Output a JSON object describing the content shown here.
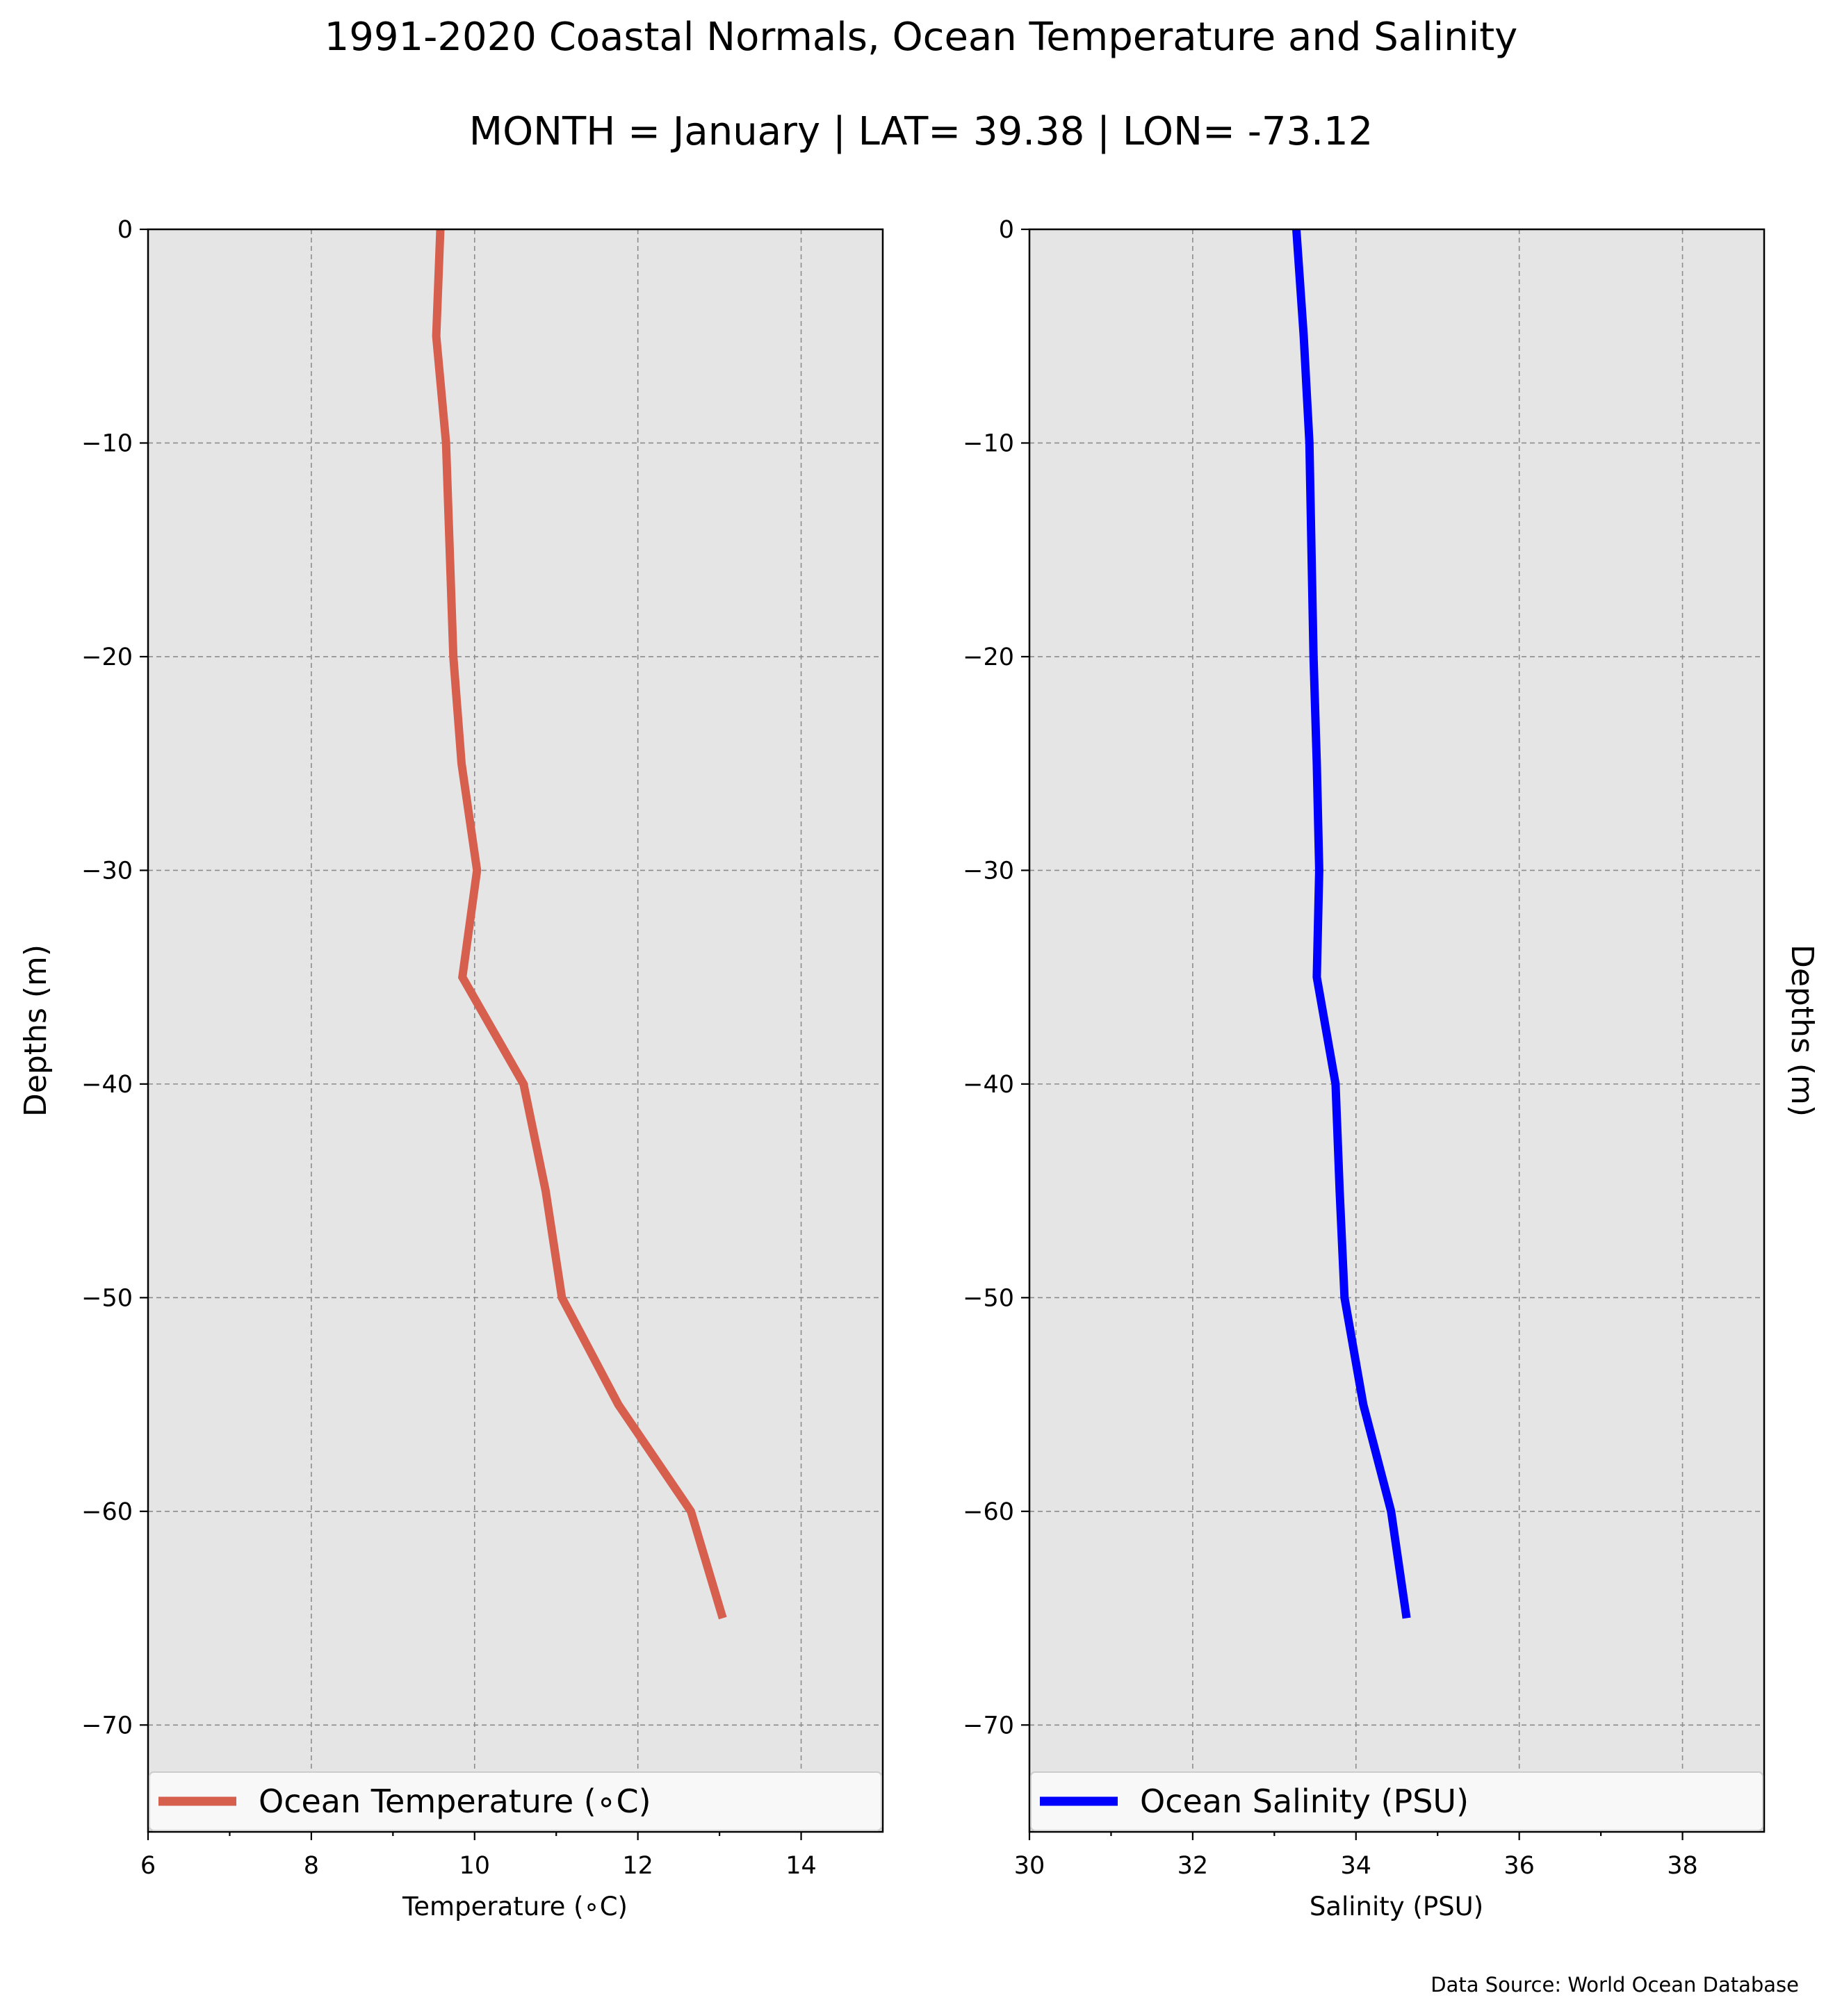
{
  "title": "1991-2020 Coastal Normals, Ocean Temperature and Salinity",
  "subtitle": "MONTH = January | LAT= 39.38 | LON= -73.12",
  "source": "Data Source: World Ocean Database",
  "chart_data": [
    {
      "type": "line",
      "series": [
        {
          "name": "Ocean Temperature (∘C)",
          "color": "#d65f4e",
          "x": [
            9.58,
            9.53,
            9.65,
            9.74,
            9.84,
            10.03,
            9.85,
            10.6,
            10.87,
            11.07,
            11.76,
            12.65,
            13.04
          ],
          "y": [
            0,
            -5,
            -10,
            -20,
            -25,
            -30,
            -35,
            -40,
            -45,
            -50,
            -55,
            -60,
            -65
          ]
        }
      ],
      "xlabel": "Temperature (∘C)",
      "ylabel": "Depths (m)",
      "xlim": [
        6,
        15
      ],
      "ylim": [
        -75,
        0
      ],
      "xticks": [
        "6",
        "8",
        "10",
        "12",
        "14"
      ],
      "yticks": [
        "0",
        "−10",
        "−20",
        "−30",
        "−40",
        "−50",
        "−60",
        "−70"
      ],
      "grid": true,
      "legend": "lower center",
      "background": "#e6e5e6"
    },
    {
      "type": "line",
      "series": [
        {
          "name": "Ocean Salinity (PSU)",
          "color": "#0000ff",
          "x": [
            33.27,
            33.36,
            33.43,
            33.48,
            33.52,
            33.55,
            33.52,
            33.75,
            33.8,
            33.86,
            34.09,
            34.43,
            34.62
          ],
          "y": [
            0,
            -5,
            -10,
            -20,
            -25,
            -30,
            -35,
            -40,
            -45,
            -50,
            -55,
            -60,
            -65
          ]
        }
      ],
      "xlabel": "Salinity (PSU)",
      "ylabel": "Depths (m)",
      "xlim": [
        30,
        39
      ],
      "ylim": [
        -75,
        0
      ],
      "xticks": [
        "30",
        "32",
        "34",
        "36",
        "38"
      ],
      "yticks": [
        "0",
        "−10",
        "−20",
        "−30",
        "−40",
        "−50",
        "−60",
        "−70"
      ],
      "grid": true,
      "legend": "lower center",
      "background": "#e6e5e6"
    }
  ]
}
